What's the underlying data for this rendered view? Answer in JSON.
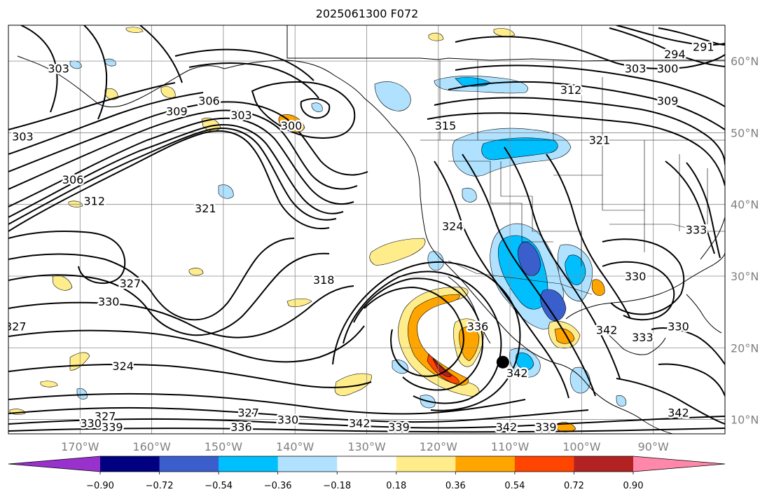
{
  "title": "2025061300 F072",
  "map": {
    "projection": "equirectangular",
    "lon_range": [
      -180,
      -80
    ],
    "lat_range": [
      8,
      65
    ],
    "grid": true,
    "lon_ticks": [
      {
        "value": -170,
        "label": "170°W"
      },
      {
        "value": -160,
        "label": "160°W"
      },
      {
        "value": -150,
        "label": "150°W"
      },
      {
        "value": -140,
        "label": "140°W"
      },
      {
        "value": -130,
        "label": "130°W"
      },
      {
        "value": -120,
        "label": "120°W"
      },
      {
        "value": -110,
        "label": "110°W"
      },
      {
        "value": -100,
        "label": "100°W"
      },
      {
        "value": -90,
        "label": "90°W"
      }
    ],
    "lat_ticks": [
      {
        "value": 10,
        "label": "10°N"
      },
      {
        "value": 20,
        "label": "20°N"
      },
      {
        "value": 30,
        "label": "30°N"
      },
      {
        "value": 40,
        "label": "40°N"
      },
      {
        "value": 50,
        "label": "50°N"
      },
      {
        "value": 60,
        "label": "60°N"
      }
    ],
    "marker": {
      "lon": -111,
      "lat": 18,
      "color": "#000000"
    },
    "contour_labels": [
      {
        "text": "303",
        "lon": -173,
        "lat": 59
      },
      {
        "text": "303",
        "lon": -178,
        "lat": 49.5
      },
      {
        "text": "306",
        "lon": -171,
        "lat": 43.5
      },
      {
        "text": "309",
        "lon": -156.5,
        "lat": 53
      },
      {
        "text": "306",
        "lon": -152,
        "lat": 54.5
      },
      {
        "text": "303",
        "lon": -147.5,
        "lat": 52.5
      },
      {
        "text": "300",
        "lon": -140.5,
        "lat": 51
      },
      {
        "text": "312",
        "lon": -168,
        "lat": 40.5
      },
      {
        "text": "321",
        "lon": -152.5,
        "lat": 39.5
      },
      {
        "text": "327",
        "lon": -163,
        "lat": 29
      },
      {
        "text": "330",
        "lon": -166,
        "lat": 26.5
      },
      {
        "text": "318",
        "lon": -136,
        "lat": 29.5
      },
      {
        "text": "324",
        "lon": -164,
        "lat": 17.5
      },
      {
        "text": "327",
        "lon": -179,
        "lat": 23
      },
      {
        "text": "327",
        "lon": -166.5,
        "lat": 10.5
      },
      {
        "text": "330",
        "lon": -168.5,
        "lat": 9.5
      },
      {
        "text": "339",
        "lon": -165.5,
        "lat": 9
      },
      {
        "text": "327",
        "lon": -146.5,
        "lat": 11
      },
      {
        "text": "336",
        "lon": -147.5,
        "lat": 9
      },
      {
        "text": "330",
        "lon": -141,
        "lat": 10
      },
      {
        "text": "342",
        "lon": -131,
        "lat": 9.5
      },
      {
        "text": "339",
        "lon": -125.5,
        "lat": 9
      },
      {
        "text": "342",
        "lon": -110.5,
        "lat": 9
      },
      {
        "text": "339",
        "lon": -105,
        "lat": 9
      },
      {
        "text": "336",
        "lon": -114.5,
        "lat": 23
      },
      {
        "text": "342",
        "lon": -109,
        "lat": 16.5
      },
      {
        "text": "342",
        "lon": -96.5,
        "lat": 22.5
      },
      {
        "text": "330",
        "lon": -92.5,
        "lat": 30
      },
      {
        "text": "330",
        "lon": -86.5,
        "lat": 23
      },
      {
        "text": "333",
        "lon": -91.5,
        "lat": 21.5
      },
      {
        "text": "342",
        "lon": -86.5,
        "lat": 11
      },
      {
        "text": "312",
        "lon": -101.5,
        "lat": 56
      },
      {
        "text": "321",
        "lon": -97.5,
        "lat": 49
      },
      {
        "text": "303",
        "lon": -92.5,
        "lat": 59
      },
      {
        "text": "309",
        "lon": -88,
        "lat": 54.5
      },
      {
        "text": "300",
        "lon": -88,
        "lat": 59
      },
      {
        "text": "294",
        "lon": -87,
        "lat": 61
      },
      {
        "text": "291",
        "lon": -83,
        "lat": 62
      },
      {
        "text": "315",
        "lon": -119,
        "lat": 51
      },
      {
        "text": "324",
        "lon": -118,
        "lat": 37
      },
      {
        "text": "333",
        "lon": -84,
        "lat": 36.5
      }
    ]
  },
  "colorbar": {
    "colors": [
      "#9932cc",
      "#000080",
      "#3a5fcd",
      "#00bfff",
      "#b0e2ff",
      "#ffffff",
      "#ffec8b",
      "#ffa500",
      "#ff4500",
      "#b22222",
      "#ff88aa"
    ],
    "tick_labels": [
      "−0.90",
      "−0.72",
      "−0.54",
      "−0.36",
      "−0.18",
      "0.18",
      "0.36",
      "0.54",
      "0.72",
      "0.90"
    ]
  }
}
